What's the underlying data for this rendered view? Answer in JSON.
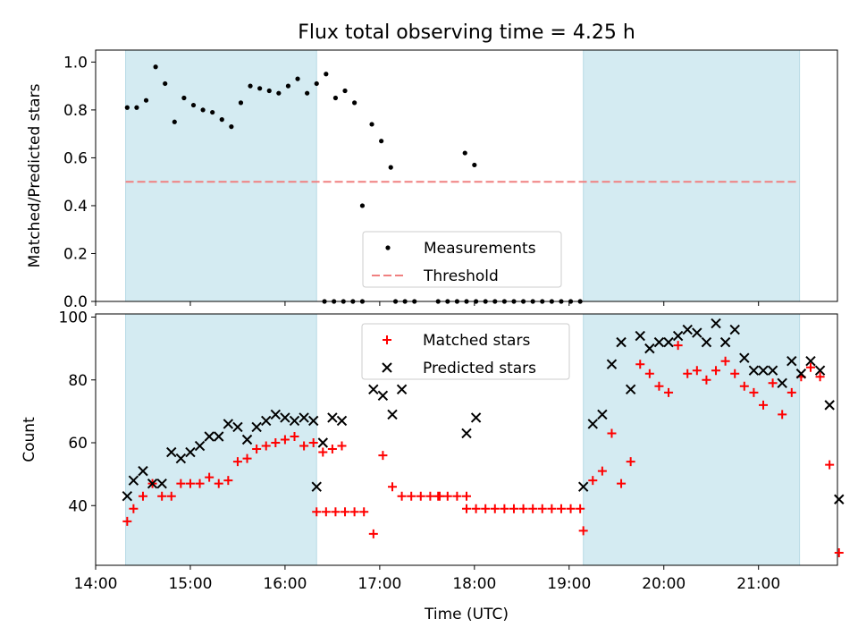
{
  "chart_data": [
    {
      "type": "scatter",
      "title": "Flux total observing time = 4.25 h",
      "ylabel": "Matched/Predicted stars",
      "xlabel": "",
      "xlim": [
        "14:00",
        "21:50"
      ],
      "ylim": [
        0.0,
        1.05
      ],
      "yticks": [
        "0.0",
        "0.2",
        "0.4",
        "0.6",
        "0.8",
        "1.0"
      ],
      "shaded_ranges": [
        [
          "14:19",
          "16:20"
        ],
        [
          "19:09",
          "21:26"
        ]
      ],
      "shade_color": "#d4ebf2",
      "legend_position": "lower-center",
      "series": [
        {
          "name": "Measurements",
          "marker": "dot",
          "color": "#000000",
          "points": [
            [
              "14:20",
              0.81
            ],
            [
              "14:26",
              0.81
            ],
            [
              "14:32",
              0.84
            ],
            [
              "14:38",
              0.98
            ],
            [
              "14:44",
              0.91
            ],
            [
              "14:50",
              0.75
            ],
            [
              "14:56",
              0.85
            ],
            [
              "15:02",
              0.82
            ],
            [
              "15:08",
              0.8
            ],
            [
              "15:14",
              0.79
            ],
            [
              "15:20",
              0.76
            ],
            [
              "15:26",
              0.73
            ],
            [
              "15:32",
              0.83
            ],
            [
              "15:38",
              0.9
            ],
            [
              "15:44",
              0.89
            ],
            [
              "15:50",
              0.88
            ],
            [
              "15:56",
              0.87
            ],
            [
              "16:02",
              0.9
            ],
            [
              "16:08",
              0.93
            ],
            [
              "16:14",
              0.87
            ],
            [
              "16:20",
              0.91
            ],
            [
              "16:26",
              0.95
            ],
            [
              "16:32",
              0.85
            ],
            [
              "16:38",
              0.88
            ],
            [
              "16:44",
              0.83
            ],
            [
              "16:25",
              0.0
            ],
            [
              "16:31",
              0.0
            ],
            [
              "16:37",
              0.0
            ],
            [
              "16:43",
              0.0
            ],
            [
              "16:49",
              0.0
            ],
            [
              "16:49",
              0.4
            ],
            [
              "16:55",
              0.74
            ],
            [
              "17:01",
              0.67
            ],
            [
              "17:07",
              0.56
            ],
            [
              "17:10",
              0.0
            ],
            [
              "17:16",
              0.0
            ],
            [
              "17:22",
              0.0
            ],
            [
              "17:37",
              0.0
            ],
            [
              "17:43",
              0.0
            ],
            [
              "17:49",
              0.0
            ],
            [
              "17:54",
              0.62
            ],
            [
              "18:00",
              0.57
            ],
            [
              "17:55",
              0.0
            ],
            [
              "18:01",
              0.0
            ],
            [
              "18:07",
              0.0
            ],
            [
              "18:13",
              0.0
            ],
            [
              "18:19",
              0.0
            ],
            [
              "18:25",
              0.0
            ],
            [
              "18:31",
              0.0
            ],
            [
              "18:37",
              0.0
            ],
            [
              "18:43",
              0.0
            ],
            [
              "18:49",
              0.0
            ],
            [
              "18:55",
              0.0
            ],
            [
              "19:01",
              0.0
            ],
            [
              "19:07",
              0.0
            ]
          ]
        },
        {
          "name": "Threshold",
          "marker": "dashed-line",
          "color": "#f08080",
          "y": 0.5
        }
      ]
    },
    {
      "type": "scatter",
      "title": "",
      "ylabel": "Count",
      "xlabel": "Time (UTC)",
      "xlim": [
        "14:00",
        "21:50"
      ],
      "ylim": [
        21,
        101
      ],
      "yticks": [
        "40",
        "60",
        "80",
        "100"
      ],
      "xticks": [
        "14:00",
        "15:00",
        "16:00",
        "17:00",
        "18:00",
        "19:00",
        "20:00",
        "21:00"
      ],
      "shaded_ranges": [
        [
          "14:19",
          "16:20"
        ],
        [
          "19:09",
          "21:26"
        ]
      ],
      "legend_position": "upper-center",
      "series": [
        {
          "name": "Matched stars",
          "marker": "plus",
          "color": "#ff0000",
          "points": [
            [
              "14:20",
              35
            ],
            [
              "14:24",
              39
            ],
            [
              "14:30",
              43
            ],
            [
              "14:36",
              47
            ],
            [
              "14:42",
              43
            ],
            [
              "14:48",
              43
            ],
            [
              "14:54",
              47
            ],
            [
              "15:00",
              47
            ],
            [
              "15:06",
              47
            ],
            [
              "15:12",
              49
            ],
            [
              "15:18",
              47
            ],
            [
              "15:24",
              48
            ],
            [
              "15:30",
              54
            ],
            [
              "15:36",
              55
            ],
            [
              "15:42",
              58
            ],
            [
              "15:48",
              59
            ],
            [
              "15:54",
              60
            ],
            [
              "16:00",
              61
            ],
            [
              "16:06",
              62
            ],
            [
              "16:12",
              59
            ],
            [
              "16:18",
              60
            ],
            [
              "16:24",
              57
            ],
            [
              "16:30",
              58
            ],
            [
              "16:36",
              59
            ],
            [
              "16:20",
              38
            ],
            [
              "16:26",
              38
            ],
            [
              "16:32",
              38
            ],
            [
              "16:38",
              38
            ],
            [
              "16:44",
              38
            ],
            [
              "16:50",
              38
            ],
            [
              "16:56",
              31
            ],
            [
              "17:02",
              56
            ],
            [
              "17:08",
              46
            ],
            [
              "17:14",
              43
            ],
            [
              "17:20",
              43
            ],
            [
              "17:26",
              43
            ],
            [
              "17:32",
              43
            ],
            [
              "17:38",
              43
            ],
            [
              "17:37",
              43
            ],
            [
              "17:43",
              43
            ],
            [
              "17:49",
              43
            ],
            [
              "17:55",
              43
            ],
            [
              "17:55",
              39
            ],
            [
              "18:01",
              39
            ],
            [
              "18:07",
              39
            ],
            [
              "18:13",
              39
            ],
            [
              "18:19",
              39
            ],
            [
              "18:25",
              39
            ],
            [
              "18:31",
              39
            ],
            [
              "18:37",
              39
            ],
            [
              "18:43",
              39
            ],
            [
              "18:49",
              39
            ],
            [
              "18:55",
              39
            ],
            [
              "19:01",
              39
            ],
            [
              "19:07",
              39
            ],
            [
              "19:09",
              32
            ],
            [
              "19:15",
              48
            ],
            [
              "19:21",
              51
            ],
            [
              "19:27",
              63
            ],
            [
              "19:33",
              47
            ],
            [
              "19:39",
              54
            ],
            [
              "19:45",
              85
            ],
            [
              "19:51",
              82
            ],
            [
              "19:57",
              78
            ],
            [
              "20:03",
              76
            ],
            [
              "20:09",
              91
            ],
            [
              "20:15",
              82
            ],
            [
              "20:21",
              83
            ],
            [
              "20:27",
              80
            ],
            [
              "20:33",
              83
            ],
            [
              "20:39",
              86
            ],
            [
              "20:45",
              82
            ],
            [
              "20:51",
              78
            ],
            [
              "20:57",
              76
            ],
            [
              "21:03",
              72
            ],
            [
              "21:09",
              79
            ],
            [
              "21:15",
              69
            ],
            [
              "21:21",
              76
            ],
            [
              "21:27",
              81
            ],
            [
              "21:33",
              84
            ],
            [
              "21:39",
              81
            ],
            [
              "21:45",
              53
            ],
            [
              "21:51",
              25
            ]
          ]
        },
        {
          "name": "Predicted stars",
          "marker": "x",
          "color": "#000000",
          "points": [
            [
              "14:20",
              43
            ],
            [
              "14:24",
              48
            ],
            [
              "14:30",
              51
            ],
            [
              "14:36",
              47
            ],
            [
              "14:42",
              47
            ],
            [
              "14:48",
              57
            ],
            [
              "14:54",
              55
            ],
            [
              "15:00",
              57
            ],
            [
              "15:06",
              59
            ],
            [
              "15:12",
              62
            ],
            [
              "15:18",
              62
            ],
            [
              "15:24",
              66
            ],
            [
              "15:30",
              65
            ],
            [
              "15:36",
              61
            ],
            [
              "15:42",
              65
            ],
            [
              "15:48",
              67
            ],
            [
              "15:54",
              69
            ],
            [
              "16:00",
              68
            ],
            [
              "16:06",
              67
            ],
            [
              "16:12",
              68
            ],
            [
              "16:18",
              67
            ],
            [
              "16:24",
              60
            ],
            [
              "16:30",
              68
            ],
            [
              "16:36",
              67
            ],
            [
              "16:20",
              46
            ],
            [
              "16:56",
              77
            ],
            [
              "17:02",
              75
            ],
            [
              "17:08",
              69
            ],
            [
              "17:14",
              77
            ],
            [
              "17:55",
              63
            ],
            [
              "18:01",
              68
            ],
            [
              "19:09",
              46
            ],
            [
              "19:15",
              66
            ],
            [
              "19:21",
              69
            ],
            [
              "19:27",
              85
            ],
            [
              "19:33",
              92
            ],
            [
              "19:39",
              77
            ],
            [
              "19:45",
              94
            ],
            [
              "19:51",
              90
            ],
            [
              "19:57",
              92
            ],
            [
              "20:03",
              92
            ],
            [
              "20:09",
              94
            ],
            [
              "20:15",
              96
            ],
            [
              "20:21",
              95
            ],
            [
              "20:27",
              92
            ],
            [
              "20:33",
              98
            ],
            [
              "20:39",
              92
            ],
            [
              "20:45",
              96
            ],
            [
              "20:51",
              87
            ],
            [
              "20:57",
              83
            ],
            [
              "21:03",
              83
            ],
            [
              "21:09",
              83
            ],
            [
              "21:15",
              79
            ],
            [
              "21:21",
              86
            ],
            [
              "21:27",
              82
            ],
            [
              "21:33",
              86
            ],
            [
              "21:39",
              83
            ],
            [
              "21:45",
              72
            ],
            [
              "21:51",
              42
            ]
          ]
        }
      ]
    }
  ]
}
